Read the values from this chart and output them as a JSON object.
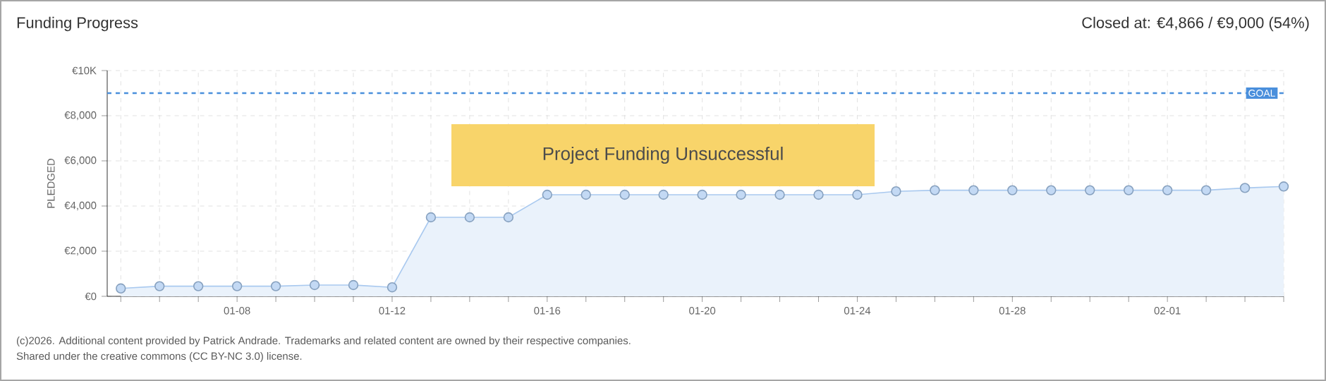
{
  "chart_data": {
    "type": "area",
    "title": "Funding Progress",
    "subtitle": "Closed at: €4,866 / €9,000 (54%)",
    "ylabel": "PLEDGED",
    "annotations": [
      "Project Funding Unsuccessful",
      "(c)2026. Additional content provided by Patrick Andrade. Trademarks and related content are owned by their respective companies.",
      "Shared under the creative commons (CC BY-NC 3.0) license."
    ],
    "categories": [
      null,
      null,
      null,
      "01-08",
      null,
      null,
      null,
      "01-12",
      null,
      null,
      null,
      "01-16",
      null,
      null,
      null,
      "01-20",
      null,
      null,
      null,
      "01-24",
      null,
      null,
      null,
      "01-28",
      null,
      null,
      null,
      "02-01",
      null,
      null,
      null
    ],
    "series": [
      {
        "color": "#a9c9ef",
        "values": [
          350,
          450,
          450,
          450,
          450,
          500,
          500,
          400,
          3500,
          3500,
          3500,
          4500,
          4500,
          4500,
          4500,
          4500,
          4500,
          4500,
          4500,
          4500,
          4650,
          4700,
          4700,
          4700,
          4700,
          4700,
          4700,
          4700,
          4700,
          4800,
          4866
        ]
      }
    ],
    "ylim": [
      0,
      10000
    ],
    "yticks": [
      {
        "value": 0,
        "label": "€0"
      },
      {
        "value": 2000,
        "label": "€2,000"
      },
      {
        "value": 4000,
        "label": "€4,000"
      },
      {
        "value": 6000,
        "label": "€6,000"
      },
      {
        "value": 8000,
        "label": "€8,000"
      },
      {
        "value": 10000,
        "label": "€10K"
      }
    ],
    "grid": true,
    "marker": "circle",
    "ref_lines": [
      {
        "axis": "y",
        "value": 9000,
        "label": "GOAL",
        "color": "#4a8fdc",
        "line_style": "dashed"
      }
    ]
  }
}
